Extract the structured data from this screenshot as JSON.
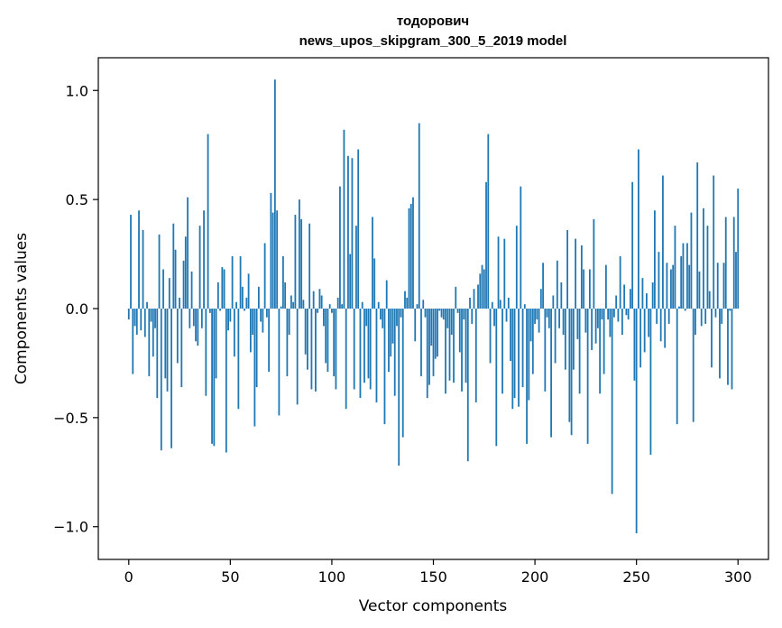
{
  "chart_data": {
    "type": "bar",
    "title_line1": "тодорович",
    "title_line2": "news_upos_skipgram_300_5_2019 model",
    "xlabel": "Vector components",
    "ylabel": "Components values",
    "xlim": [
      -15,
      315
    ],
    "ylim": [
      -1.15,
      1.15
    ],
    "xticks": [
      0,
      50,
      100,
      150,
      200,
      250,
      300
    ],
    "xtick_labels": [
      "0",
      "50",
      "100",
      "150",
      "200",
      "250",
      "300"
    ],
    "yticks": [
      -1.0,
      -0.5,
      0.0,
      0.5,
      1.0
    ],
    "ytick_labels": [
      "−1.0",
      "−0.5",
      "0.0",
      "0.5",
      "1.0"
    ],
    "bar_color": "#1f77b4",
    "values": [
      -0.05,
      0.43,
      -0.3,
      -0.08,
      -0.12,
      0.45,
      -0.1,
      0.36,
      -0.13,
      0.03,
      -0.31,
      -0.06,
      -0.22,
      -0.09,
      -0.41,
      0.34,
      -0.65,
      0.18,
      -0.32,
      -0.38,
      0.14,
      -0.64,
      0.39,
      0.27,
      -0.25,
      0.05,
      -0.36,
      0.22,
      0.33,
      0.51,
      -0.09,
      0.17,
      -0.08,
      -0.15,
      -0.17,
      0.38,
      -0.09,
      0.45,
      -0.4,
      0.8,
      -0.02,
      -0.62,
      -0.63,
      -0.32,
      0.12,
      -0.01,
      0.19,
      0.18,
      -0.66,
      -0.1,
      -0.06,
      0.24,
      -0.22,
      0.03,
      -0.46,
      0.24,
      0.1,
      -0.01,
      0.05,
      0.16,
      -0.2,
      -0.12,
      -0.54,
      -0.36,
      0.1,
      -0.06,
      -0.11,
      0.3,
      -0.04,
      -0.29,
      0.53,
      0.44,
      1.05,
      0.45,
      -0.49,
      0.01,
      0.24,
      0.12,
      -0.31,
      -0.12,
      0.06,
      0.03,
      0.43,
      -0.44,
      0.5,
      0.41,
      0.04,
      -0.21,
      -0.28,
      0.39,
      -0.37,
      0.08,
      -0.38,
      -0.02,
      0.09,
      0.06,
      -0.08,
      -0.25,
      -0.29,
      0.02,
      -0.02,
      -0.31,
      -0.37,
      0.05,
      0.56,
      0.02,
      0.82,
      -0.46,
      0.7,
      0.25,
      0.69,
      -0.37,
      0.38,
      0.73,
      -0.41,
      0.03,
      -0.34,
      -0.08,
      -0.32,
      -0.37,
      0.42,
      0.23,
      -0.43,
      0.03,
      -0.05,
      -0.09,
      -0.53,
      0.13,
      -0.29,
      -0.22,
      -0.16,
      -0.4,
      -0.08,
      -0.72,
      -0.04,
      -0.59,
      0.08,
      0.05,
      0.46,
      0.48,
      0.51,
      -0.15,
      0.02,
      0.85,
      -0.31,
      0.04,
      -0.04,
      -0.41,
      -0.35,
      -0.17,
      -0.31,
      -0.23,
      -0.22,
      -0.01,
      -0.04,
      -0.05,
      -0.39,
      -0.09,
      -0.33,
      -0.12,
      -0.34,
      0.1,
      -0.02,
      -0.2,
      -0.38,
      -0.05,
      -0.34,
      -0.7,
      0.05,
      -0.07,
      0.09,
      -0.43,
      0.11,
      0.16,
      0.2,
      0.18,
      0.58,
      0.8,
      -0.25,
      0.03,
      -0.08,
      -0.63,
      0.33,
      0.04,
      -0.39,
      0.32,
      -0.06,
      0.05,
      -0.24,
      -0.46,
      -0.41,
      0.38,
      -0.45,
      0.56,
      -0.36,
      0.02,
      -0.62,
      -0.42,
      -0.15,
      -0.3,
      -0.07,
      -0.05,
      -0.11,
      0.09,
      0.21,
      -0.38,
      -0.04,
      -0.09,
      -0.59,
      0.06,
      -0.25,
      0.22,
      -0.09,
      0.12,
      -0.12,
      -0.28,
      0.36,
      -0.52,
      -0.58,
      -0.28,
      0.32,
      -0.14,
      -0.39,
      0.29,
      0.18,
      -0.11,
      -0.62,
      0.18,
      -0.19,
      0.41,
      -0.16,
      -0.09,
      -0.39,
      -0.05,
      -0.3,
      0.2,
      -0.05,
      -0.13,
      -0.85,
      -0.04,
      0.06,
      -0.06,
      0.24,
      -0.12,
      0.11,
      -0.03,
      -0.05,
      0.09,
      0.58,
      -0.33,
      -1.03,
      0.73,
      -0.27,
      0.14,
      -0.2,
      0.07,
      -0.13,
      -0.67,
      0.12,
      0.45,
      -0.07,
      0.26,
      -0.15,
      0.61,
      -0.18,
      0.21,
      -0.07,
      0.18,
      0.2,
      0.38,
      -0.53,
      0.01,
      0.24,
      0.3,
      -0.01,
      0.3,
      0.2,
      0.44,
      -0.52,
      -0.12,
      0.67,
      0.17,
      -0.08,
      0.46,
      -0.07,
      0.38,
      0.08,
      -0.27,
      0.61,
      -0.04,
      0.21,
      -0.32,
      -0.07,
      0.21,
      0.42,
      -0.35,
      -0.01,
      -0.37,
      0.42,
      0.26,
      0.55
    ]
  }
}
